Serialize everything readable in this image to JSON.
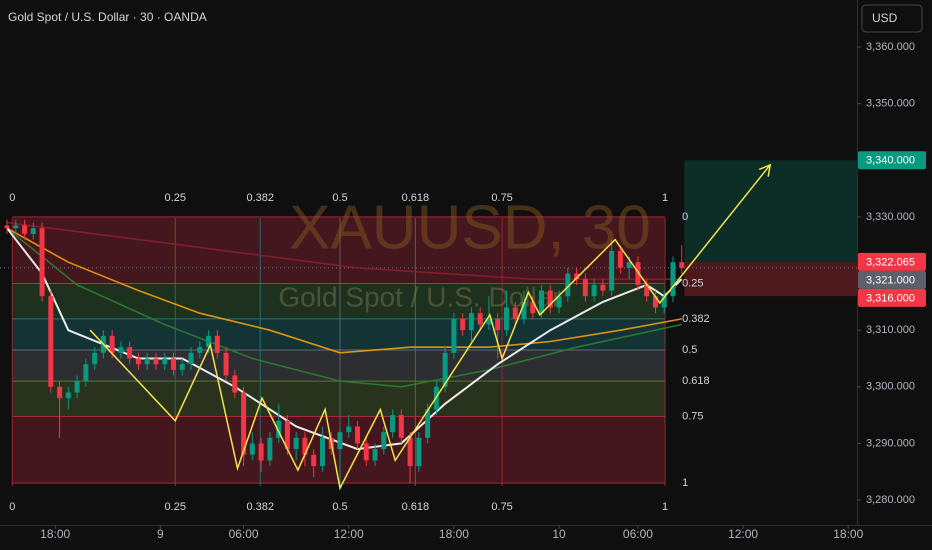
{
  "header": {
    "title": "Gold Spot / U.S. Dollar · 30 · OANDA",
    "currency": "USD"
  },
  "watermark": {
    "symbol": "XAUUSD, 30",
    "name": "Gold Spot / U.S. Dollar"
  },
  "chart_data": {
    "type": "candlestick",
    "xlim": [
      0,
      97
    ],
    "xticks": [
      {
        "value": 5.5,
        "label": "18:00"
      },
      {
        "value": 17.5,
        "label": "9"
      },
      {
        "value": 27,
        "label": "06:00"
      },
      {
        "value": 39,
        "label": "12:00"
      },
      {
        "value": 51,
        "label": "18:00"
      },
      {
        "value": 63,
        "label": "10"
      },
      {
        "value": 72,
        "label": "06:00"
      },
      {
        "value": 84,
        "label": "12:00"
      },
      {
        "value": 96,
        "label": "18:00"
      }
    ],
    "ylim": [
      3275.6,
      3368.3
    ],
    "yticks": [
      {
        "value": 3280,
        "label": "3,280.000"
      },
      {
        "value": 3290,
        "label": "3,290.000"
      },
      {
        "value": 3300,
        "label": "3,300.000"
      },
      {
        "value": 3310,
        "label": "3,310.000"
      },
      {
        "value": 3330,
        "label": "3,330.000"
      },
      {
        "value": 3350,
        "label": "3,350.000"
      },
      {
        "value": 3360,
        "label": "3,360.000"
      }
    ],
    "up_color": "#089981",
    "down_color": "#f23645",
    "open": [
      3328.5,
      3328,
      3328.5,
      3327,
      3328,
      3316,
      3300,
      3298,
      3299,
      3301,
      3304,
      3306,
      3309,
      3306,
      3307,
      3305,
      3304,
      3305,
      3304,
      3305,
      3303,
      3304,
      3306,
      3307,
      3309,
      3306,
      3302,
      3299,
      3288,
      3290,
      3287,
      3291,
      3294,
      3289,
      3291,
      3288,
      3286,
      3291,
      3289,
      3292,
      3293,
      3290,
      3287,
      3289,
      3292,
      3295,
      3291,
      3286,
      3291,
      3296,
      3300,
      3306,
      3312,
      3310,
      3313,
      3311,
      3312,
      3310,
      3314,
      3312,
      3315,
      3313,
      3317,
      3314,
      3316,
      3320,
      3319,
      3316,
      3318,
      3317,
      3324,
      3321,
      3322,
      3318,
      3316,
      3314,
      3316,
      3322
    ],
    "high": [
      3329.5,
      3329.5,
      3329.5,
      3329,
      3329,
      3317,
      3301,
      3300,
      3302,
      3305,
      3307,
      3310,
      3310,
      3308,
      3308,
      3306,
      3306,
      3306,
      3306,
      3306,
      3305,
      3307,
      3308,
      3310,
      3310,
      3307,
      3303,
      3300,
      3292,
      3291,
      3292,
      3297,
      3295,
      3292,
      3292,
      3289,
      3293,
      3292,
      3293,
      3295,
      3294,
      3291,
      3290,
      3293,
      3296,
      3296,
      3292,
      3292,
      3297,
      3301,
      3307,
      3313,
      3313,
      3314,
      3314,
      3316,
      3313,
      3317,
      3315,
      3317,
      3316,
      3318,
      3318,
      3317,
      3321,
      3321,
      3320,
      3319,
      3319,
      3326,
      3325,
      3323,
      3323,
      3319,
      3317,
      3317,
      3323,
      3325
    ],
    "low": [
      3327,
      3327,
      3326,
      3326,
      3315,
      3299,
      3291,
      3296,
      3298,
      3300,
      3303,
      3305,
      3305,
      3305,
      3304,
      3303,
      3303,
      3303,
      3303,
      3302,
      3302,
      3303,
      3305,
      3306,
      3305,
      3301,
      3298,
      3286,
      3287,
      3285,
      3286,
      3290,
      3288,
      3287,
      3286,
      3284,
      3285,
      3288,
      3282,
      3291,
      3289,
      3286,
      3286,
      3288,
      3291,
      3290,
      3283,
      3285,
      3290,
      3295,
      3299,
      3305,
      3309,
      3308,
      3310,
      3310,
      3305,
      3309,
      3311,
      3311,
      3312,
      3312,
      3313,
      3313,
      3315,
      3318,
      3315,
      3315,
      3316,
      3316,
      3320,
      3319,
      3317,
      3315,
      3313,
      3313,
      3315,
      3320
    ],
    "close": [
      3328,
      3328.5,
      3327,
      3328,
      3316,
      3300,
      3298,
      3299,
      3301,
      3304,
      3306,
      3309,
      3306,
      3307,
      3305,
      3304,
      3305,
      3304,
      3305,
      3303,
      3304,
      3306,
      3307,
      3309,
      3306,
      3302,
      3299,
      3288,
      3290,
      3287,
      3291,
      3294,
      3289,
      3291,
      3288,
      3286,
      3291,
      3289,
      3292,
      3293,
      3290,
      3287,
      3289,
      3292,
      3295,
      3291,
      3286,
      3291,
      3296,
      3300,
      3306,
      3312,
      3310,
      3313,
      3311,
      3312,
      3310,
      3314,
      3312,
      3315,
      3313,
      3317,
      3314,
      3316,
      3320,
      3319,
      3316,
      3318,
      3317,
      3324,
      3321,
      3322,
      3318,
      3316,
      3314,
      3316,
      3322,
      3321
    ],
    "moving_averages": [
      {
        "color": "#8b1e2e",
        "x": [
          0,
          20,
          40,
          60,
          77
        ],
        "values": [
          3329,
          3325,
          3321,
          3319,
          3319
        ]
      },
      {
        "color": "#2e7d32",
        "x": [
          0,
          8,
          18,
          28,
          38,
          45,
          55,
          65,
          77
        ],
        "values": [
          3328,
          3318,
          3311,
          3305,
          3301,
          3300,
          3303,
          3307,
          3311
        ]
      },
      {
        "color": "#f59e0b",
        "x": [
          0,
          7,
          15,
          22,
          30,
          38,
          46,
          55,
          62,
          70,
          77
        ],
        "values": [
          3328,
          3322,
          3317,
          3313,
          3310,
          3306,
          3307,
          3307,
          3308,
          3310,
          3312
        ]
      },
      {
        "color": "#ffffff",
        "x": [
          0,
          4,
          7,
          15,
          20,
          26,
          33,
          40,
          45,
          50,
          56,
          62,
          68,
          73,
          75,
          77
        ],
        "values": [
          3328,
          3320,
          3310,
          3305,
          3305,
          3300,
          3293,
          3289,
          3290,
          3297,
          3304,
          3310,
          3315,
          3318,
          3316,
          3319
        ]
      }
    ],
    "pattern": {
      "color": "#f5e44a",
      "x": [
        9.5,
        19.2,
        23.2,
        26.3,
        29.1,
        33.2,
        36.3,
        38,
        42.6,
        44.3,
        55.1,
        56.5,
        59.5,
        60.8,
        69.4,
        74.5,
        87.1
      ],
      "y": [
        3310,
        3294,
        3307.4,
        3285.6,
        3298,
        3285.3,
        3296,
        3282.1,
        3296,
        3287,
        3312.7,
        3305,
        3316.7,
        3312.7,
        3326,
        3314.8,
        3339.2
      ]
    },
    "fib_ratios": [
      0,
      0.25,
      0.382,
      0.5,
      0.618,
      0.75,
      1
    ],
    "fib_prices": [
      3330,
      3318.25,
      3312,
      3306.5,
      3301,
      3294.75,
      3283
    ],
    "fib_time_x": [
      0.6,
      19.2,
      28.9,
      38,
      46.6,
      56.5,
      75.1
    ],
    "fib_colors": [
      "#b2283a",
      "#3d7a3d",
      "#1e7f86",
      "#6b6f7a",
      "#5f7d3a",
      "#b2283a"
    ],
    "position_x": 77.3,
    "price_labels": [
      {
        "value": 3340,
        "label": "3,340.000",
        "color": "#089981"
      },
      {
        "value": 3322.065,
        "label": "3,322.065",
        "color": "#f23645"
      },
      {
        "value": 3321,
        "label": "3,321.000",
        "color": "#5d606b"
      },
      {
        "value": 3316,
        "label": "3,316.000",
        "color": "#f23645"
      }
    ]
  }
}
